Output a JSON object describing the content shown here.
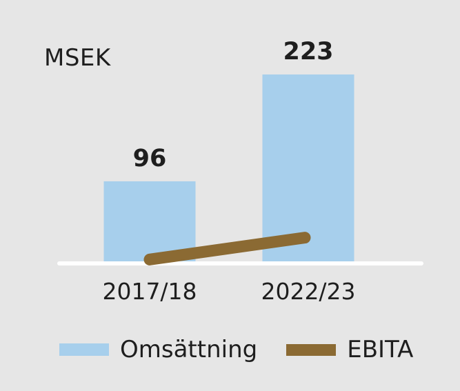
{
  "chart_data": {
    "type": "bar",
    "unit_label": "MSEK",
    "categories": [
      "2017/18",
      "2022/23"
    ],
    "series": [
      {
        "name": "Omsättning",
        "kind": "bar",
        "color": "#a7cfec",
        "values": [
          96,
          223
        ],
        "value_labels": [
          "96",
          "223"
        ]
      },
      {
        "name": "EBITA",
        "kind": "line",
        "color": "#8b6a33",
        "values": [
          3,
          29
        ]
      }
    ],
    "ylim": [
      0,
      223
    ],
    "grid": false,
    "legend_position": "bottom",
    "baseline_color": "#ffffff"
  }
}
